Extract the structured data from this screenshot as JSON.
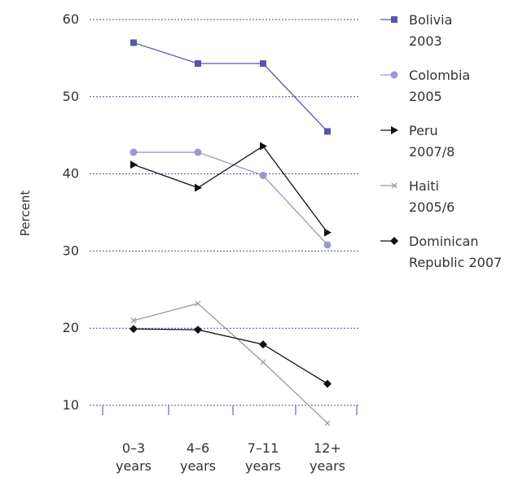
{
  "chart_data": {
    "type": "line",
    "ylabel": "Percent",
    "ylim": [
      10,
      60
    ],
    "yticks": [
      10,
      20,
      30,
      40,
      50,
      60
    ],
    "categories": [
      {
        "line1": "0–3",
        "line2": "years"
      },
      {
        "line1": "4–6",
        "line2": "years"
      },
      {
        "line1": "7–11",
        "line2": "years"
      },
      {
        "line1": "12+",
        "line2": "years"
      }
    ],
    "grid": true,
    "legend_position": "right",
    "series": [
      {
        "name_line1": "Bolivia",
        "name_line2": "2003",
        "values": [
          57,
          54.3,
          54.3,
          45.5
        ],
        "color": "#5656a8",
        "marker": "square"
      },
      {
        "name_line1": "Colombia",
        "name_line2": "2005",
        "values": [
          42.8,
          42.8,
          39.8,
          30.8
        ],
        "color": "#9999cc",
        "marker": "circle"
      },
      {
        "name_line1": "Peru",
        "name_line2": "2007/8",
        "values": [
          41.2,
          38.2,
          43.6,
          32.4
        ],
        "color": "#111111",
        "marker": "triangle-right"
      },
      {
        "name_line1": "Haiti",
        "name_line2": "2005/6",
        "values": [
          21,
          23.2,
          15.6,
          7.7
        ],
        "color": "#999999",
        "marker": "x"
      },
      {
        "name_line1": "Dominican",
        "name_line2": "Republic 2007",
        "values": [
          19.9,
          19.8,
          17.9,
          12.8
        ],
        "color": "#111111",
        "marker": "diamond"
      }
    ]
  }
}
